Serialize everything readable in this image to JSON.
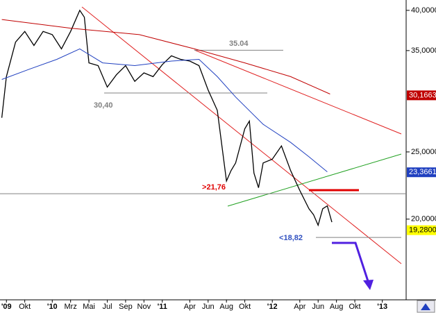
{
  "chart_data": {
    "type": "line",
    "log_scale": true,
    "xlim": [
      6.3,
      50.6
    ],
    "ylim": [
      15.3,
      41.4
    ],
    "xticks": [
      {
        "value": 7,
        "label": "'09"
      },
      {
        "value": 9,
        "label": "Okt"
      },
      {
        "value": 12,
        "label": "'10"
      },
      {
        "value": 14,
        "label": "Mrz"
      },
      {
        "value": 16,
        "label": "Mai"
      },
      {
        "value": 18,
        "label": "Jul"
      },
      {
        "value": 20,
        "label": "Sep"
      },
      {
        "value": 22,
        "label": "Nov"
      },
      {
        "value": 24,
        "label": "'11"
      },
      {
        "value": 27,
        "label": "Apr"
      },
      {
        "value": 29,
        "label": "Jun"
      },
      {
        "value": 31,
        "label": "Aug"
      },
      {
        "value": 33,
        "label": "Okt"
      },
      {
        "value": 36,
        "label": "'12"
      },
      {
        "value": 39,
        "label": "Apr"
      },
      {
        "value": 41,
        "label": "Jun"
      },
      {
        "value": 43,
        "label": "Aug"
      },
      {
        "value": 45,
        "label": "Okt"
      },
      {
        "value": 48,
        "label": "'13"
      }
    ],
    "yticks": [
      {
        "value": 40,
        "label": "40,0000"
      },
      {
        "value": 35,
        "label": "35,0000"
      },
      {
        "value": 25,
        "label": "25,0000"
      },
      {
        "value": 20,
        "label": "20,0000"
      }
    ],
    "series": [
      {
        "color": "#000000",
        "x": [
          6.5,
          7,
          8,
          9,
          10,
          11,
          12,
          13,
          14,
          15,
          15.5,
          16,
          17,
          18,
          19,
          20,
          21,
          22,
          23,
          24,
          25,
          26,
          27,
          28,
          29,
          30,
          31,
          31.5,
          32,
          33,
          33.5,
          34,
          34.5,
          35,
          36,
          37,
          38,
          39,
          40,
          40.5,
          41,
          41.5,
          42,
          42.5
        ],
        "values": [
          28.0,
          32.1,
          36.0,
          37.3,
          35.6,
          37.3,
          36.9,
          35.2,
          37.3,
          40.0,
          39.1,
          33.6,
          33.3,
          31.0,
          32.3,
          33.3,
          31.6,
          32.5,
          32.1,
          33.4,
          34.4,
          34.0,
          33.8,
          33.3,
          30.7,
          28.7,
          22.7,
          23.5,
          24.1,
          27.0,
          27.7,
          23.3,
          22.2,
          24.1,
          24.4,
          25.5,
          23.5,
          22.0,
          20.7,
          20.3,
          19.6,
          20.7,
          20.9,
          19.8
        ]
      },
      {
        "color": "#2040c0",
        "x": [
          6.5,
          9.5,
          12.5,
          15,
          17.5,
          21,
          25,
          28,
          30,
          32,
          35,
          38,
          40,
          42
        ],
        "values": [
          31.8,
          32.9,
          34.0,
          35.2,
          33.6,
          33.3,
          33.8,
          34.0,
          32.1,
          30.0,
          27.4,
          25.8,
          24.6,
          23.4
        ]
      },
      {
        "color": "#c00000",
        "x": [
          6.5,
          14,
          21.5,
          27.5,
          33,
          38,
          42.3
        ],
        "values": [
          38.8,
          37.7,
          36.9,
          35.2,
          33.6,
          32.1,
          30.3
        ]
      }
    ],
    "price_labels": [
      {
        "value": 30.1663,
        "label": "30,1663",
        "color": "#c00000",
        "text_color": "#ffffff"
      },
      {
        "value": 23.3661,
        "label": "23,3661",
        "color": "#2040c0",
        "text_color": "#ffffff"
      },
      {
        "value": 19.28,
        "label": "19,2800",
        "color": "#ffff00",
        "text_color": "#000000"
      }
    ],
    "annotations": [
      {
        "value": 35.04,
        "label": "35.04",
        "color": "#808080"
      },
      {
        "value": 30.4,
        "label": "30,40",
        "color": "#808080"
      },
      {
        "value": 21.76,
        "label": ">21,76",
        "color": "#e00000"
      },
      {
        "value": 18.82,
        "label": "<18,82",
        "color": "#3050c0"
      }
    ]
  }
}
